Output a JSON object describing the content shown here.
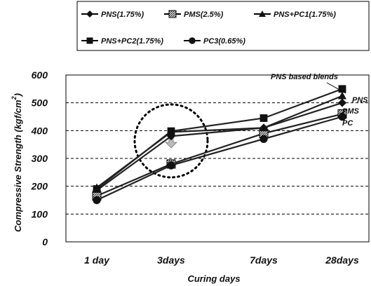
{
  "chart_data": {
    "type": "line",
    "xlabel": "Curing days",
    "ylabel": "Compressive Strength (kgf/cm²)",
    "ylabel_parts": {
      "main": "Compressive Strength (kgf/cm",
      "sup": "2",
      "close": ")"
    },
    "categories": [
      "1 day",
      "3days",
      "7days",
      "28days"
    ],
    "ylim": [
      0,
      600
    ],
    "yticks": [
      "0",
      "100",
      "200",
      "300",
      "400",
      "500",
      "600"
    ],
    "grid": "horizontal dashed",
    "legend_position": "top",
    "series": [
      {
        "name": "PNS(1.75%)",
        "marker": "diamond",
        "values": [
          185,
          380,
          410,
          500
        ]
      },
      {
        "name": "PMS(2.5%)",
        "marker": "hatched-square",
        "values": [
          165,
          280,
          390,
          460
        ]
      },
      {
        "name": "PNS+PC1(1.75%)",
        "marker": "triangle",
        "values": [
          195,
          395,
          410,
          525
        ]
      },
      {
        "name": "PNS+PC2(1.75%)",
        "marker": "square",
        "values": [
          190,
          398,
          445,
          550
        ]
      },
      {
        "name": "PC3(0.65%)",
        "marker": "circle",
        "values": [
          150,
          275,
          370,
          450
        ]
      }
    ],
    "annotations": {
      "top": "PNS based blends",
      "right_labels": [
        "PNS",
        "PMS",
        "PC"
      ]
    }
  }
}
